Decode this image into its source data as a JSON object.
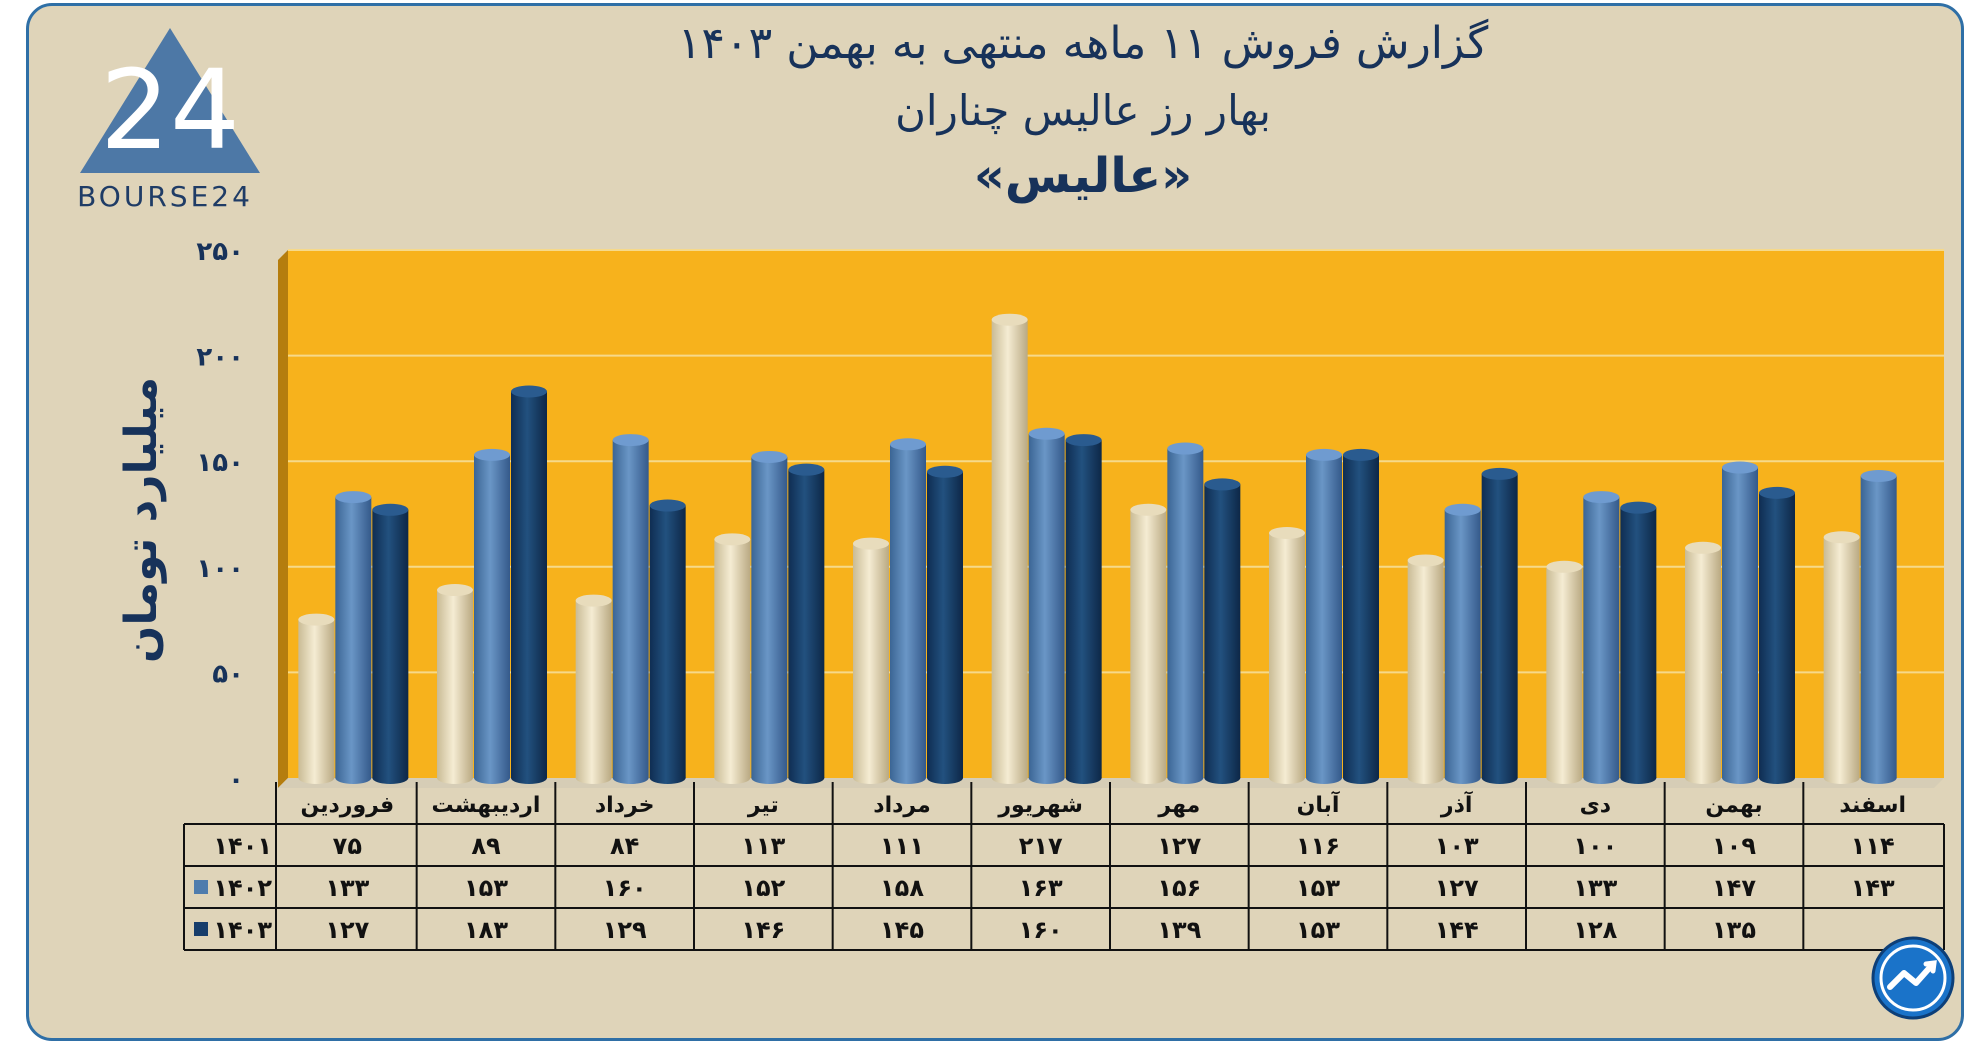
{
  "header": {
    "title_line1": "گزارش  فروش ۱۱ ماهه منتهی به بهمن ۱۴۰۳",
    "title_line2": "بهار رز عالیس چناران",
    "title_line3": "«عالیس»"
  },
  "logo": {
    "text": "BOURSE24",
    "mark": "24"
  },
  "colors": {
    "background": "#dfd4b9",
    "plot_bg": "#f7b21c",
    "series_1401": "#e8dcbc",
    "series_1402": "#4f7cad",
    "series_1403": "#173d6b",
    "text": "#17325a"
  },
  "chart_data": {
    "type": "bar",
    "ylabel": "میلیارد تومان",
    "ylim": [
      0,
      250
    ],
    "yticks": [
      0,
      50,
      100,
      150,
      200,
      250
    ],
    "ytick_labels": [
      "۰",
      "۵۰",
      "۱۰۰",
      "۱۵۰",
      "۲۰۰",
      "۲۵۰"
    ],
    "categories": [
      "فروردین",
      "اردیبهشت",
      "خرداد",
      "تیر",
      "مرداد",
      "شهریور",
      "مهر",
      "آبان",
      "آذر",
      "دی",
      "بهمن",
      "اسفند"
    ],
    "grid": true,
    "series": [
      {
        "name": "۱۴۰۱",
        "values": [
          75,
          89,
          84,
          113,
          111,
          217,
          127,
          116,
          103,
          100,
          109,
          114
        ],
        "labels": [
          "۷۵",
          "۸۹",
          "۸۴",
          "۱۱۳",
          "۱۱۱",
          "۲۱۷",
          "۱۲۷",
          "۱۱۶",
          "۱۰۳",
          "۱۰۰",
          "۱۰۹",
          "۱۱۴"
        ]
      },
      {
        "name": "۱۴۰۲",
        "values": [
          133,
          153,
          160,
          152,
          158,
          163,
          156,
          153,
          127,
          133,
          147,
          143
        ],
        "labels": [
          "۱۳۳",
          "۱۵۳",
          "۱۶۰",
          "۱۵۲",
          "۱۵۸",
          "۱۶۳",
          "۱۵۶",
          "۱۵۳",
          "۱۲۷",
          "۱۳۳",
          "۱۴۷",
          "۱۴۳"
        ]
      },
      {
        "name": "۱۴۰۳",
        "values": [
          127,
          183,
          129,
          146,
          145,
          160,
          139,
          153,
          144,
          128,
          135,
          null
        ],
        "labels": [
          "۱۲۷",
          "۱۸۳",
          "۱۲۹",
          "۱۴۶",
          "۱۴۵",
          "۱۶۰",
          "۱۳۹",
          "۱۵۳",
          "۱۴۴",
          "۱۲۸",
          "۱۳۵",
          ""
        ]
      }
    ]
  }
}
